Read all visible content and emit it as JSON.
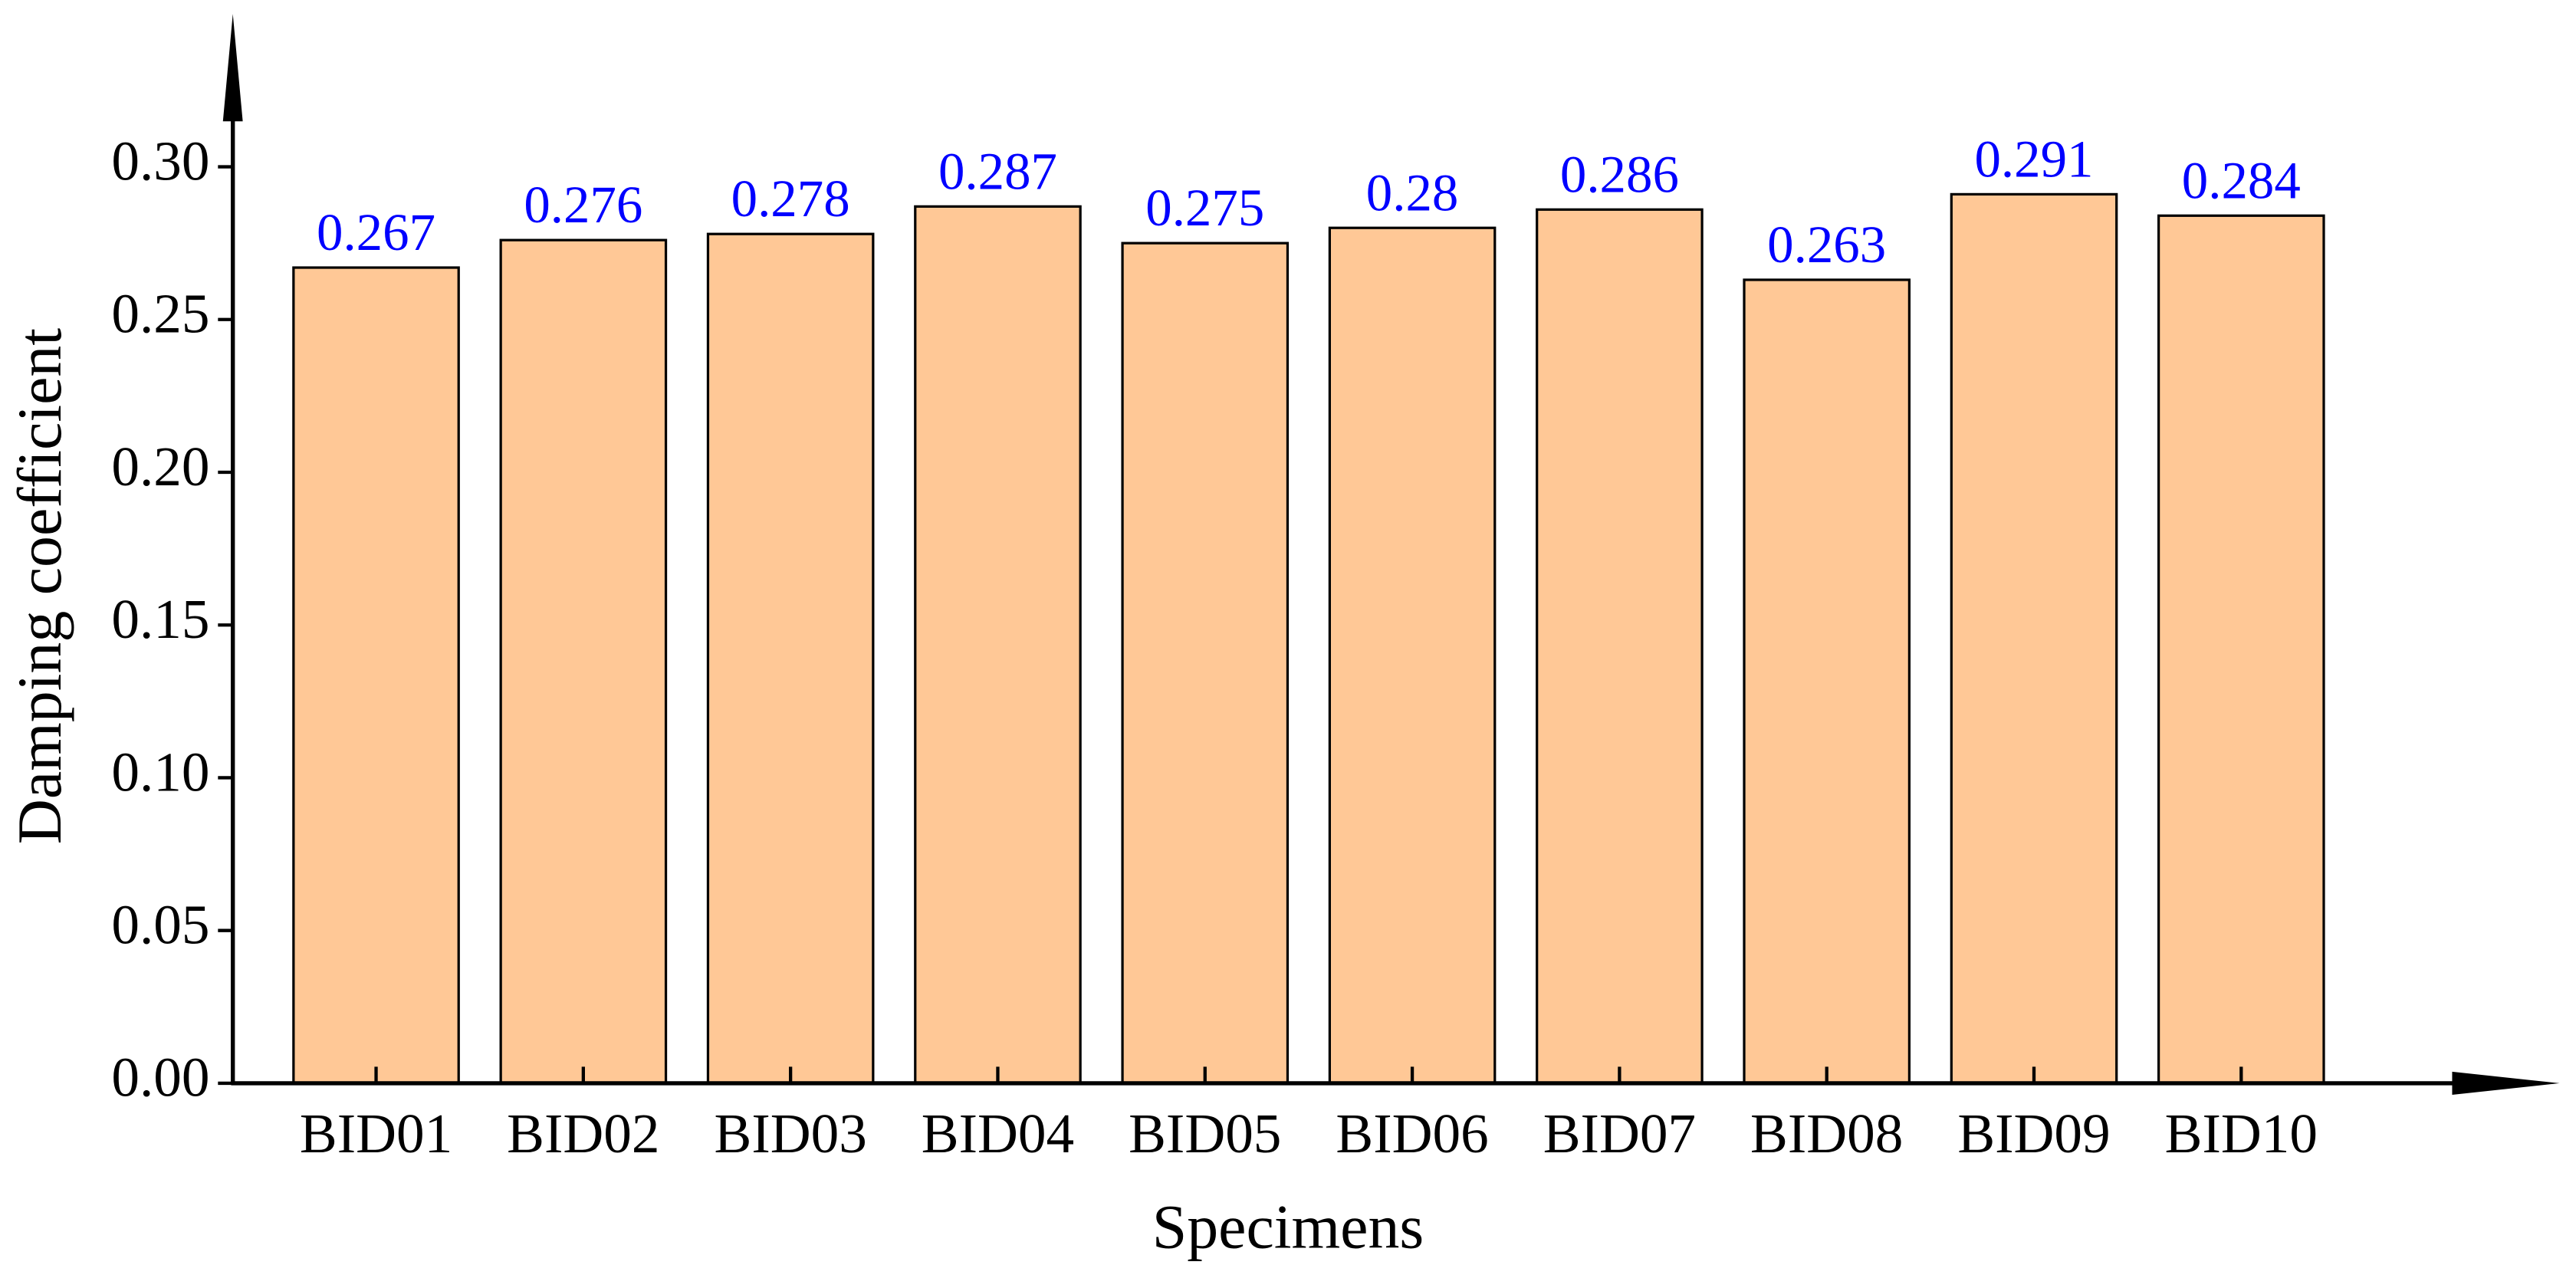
{
  "chart_data": {
    "type": "bar",
    "x_label": "Specimens",
    "y_label": "Damping coefficient",
    "categories": [
      "BID01",
      "BID02",
      "BID03",
      "BID04",
      "BID05",
      "BID06",
      "BID07",
      "BID08",
      "BID09",
      "BID10"
    ],
    "values": [
      0.267,
      0.276,
      0.278,
      0.287,
      0.275,
      0.28,
      0.286,
      0.263,
      0.291,
      0.284
    ],
    "color": "#ffc896",
    "value_label_color": "#0000ff",
    "ylim": [
      0,
      0.35
    ],
    "yticks": [
      {
        "value": 0,
        "label": "0.00"
      },
      {
        "value": 0.05,
        "label": "0.05"
      },
      {
        "value": 0.1,
        "label": "0.10"
      },
      {
        "value": 0.15,
        "label": "0.15"
      },
      {
        "value": 0.2,
        "label": "0.20"
      },
      {
        "value": 0.25,
        "label": "0.25"
      },
      {
        "value": 0.3,
        "label": "0.30"
      }
    ],
    "grid": false
  }
}
